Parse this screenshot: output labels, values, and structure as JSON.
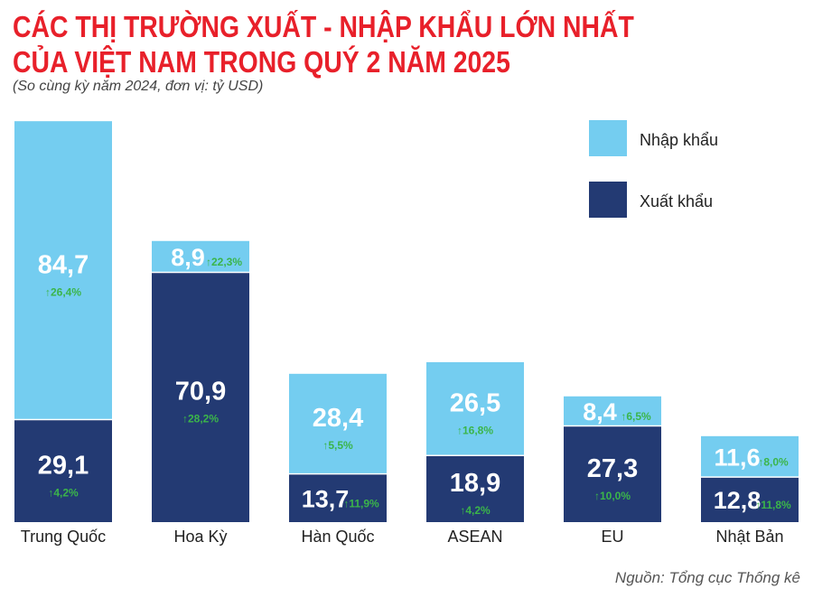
{
  "title_line1": "CÁC THỊ TRƯỜNG XUẤT - NHẬP KHẨU LỚN NHẤT",
  "title_line2": "CỦA VIỆT NAM TRONG QUÝ 2 NĂM 2025",
  "subtitle": "(So cùng kỳ năm 2024, đơn vị: tỷ USD)",
  "source": "Nguồn: Tổng cục Thống kê",
  "colors": {
    "import": "#74cdf0",
    "export": "#233a73",
    "growth": "#3bb54a",
    "title": "#e8202a"
  },
  "chart_data": {
    "type": "bar",
    "stacked": true,
    "categories": [
      "Trung Quốc",
      "Hoa Kỳ",
      "Hàn Quốc",
      "ASEAN",
      "EU",
      "Nhật Bản"
    ],
    "series": [
      {
        "name": "Xuất khẩu",
        "values": [
          29.1,
          70.9,
          13.7,
          18.9,
          27.3,
          12.8
        ],
        "labels": [
          "29,1",
          "70,9",
          "13,7",
          "18,9",
          "27,3",
          "12,8"
        ],
        "growth": [
          "↑4,2%",
          "↑28,2%",
          "↑11,9%",
          "↑4,2%",
          "↑10,0%",
          "↑11,8%"
        ]
      },
      {
        "name": "Nhập khẩu",
        "values": [
          84.7,
          8.9,
          28.4,
          26.5,
          8.4,
          11.6
        ],
        "labels": [
          "84,7",
          "8,9",
          "28,4",
          "26,5",
          "8,4",
          "11,6"
        ],
        "growth": [
          "↑26,4%",
          "↑22,3%",
          "↑5,5%",
          "↑16,8%",
          "↑6,5%",
          "↑8,0%"
        ]
      }
    ],
    "legend": [
      "Nhập khẩu",
      "Xuất khẩu"
    ],
    "legend_position": "top-right",
    "grid": false
  }
}
